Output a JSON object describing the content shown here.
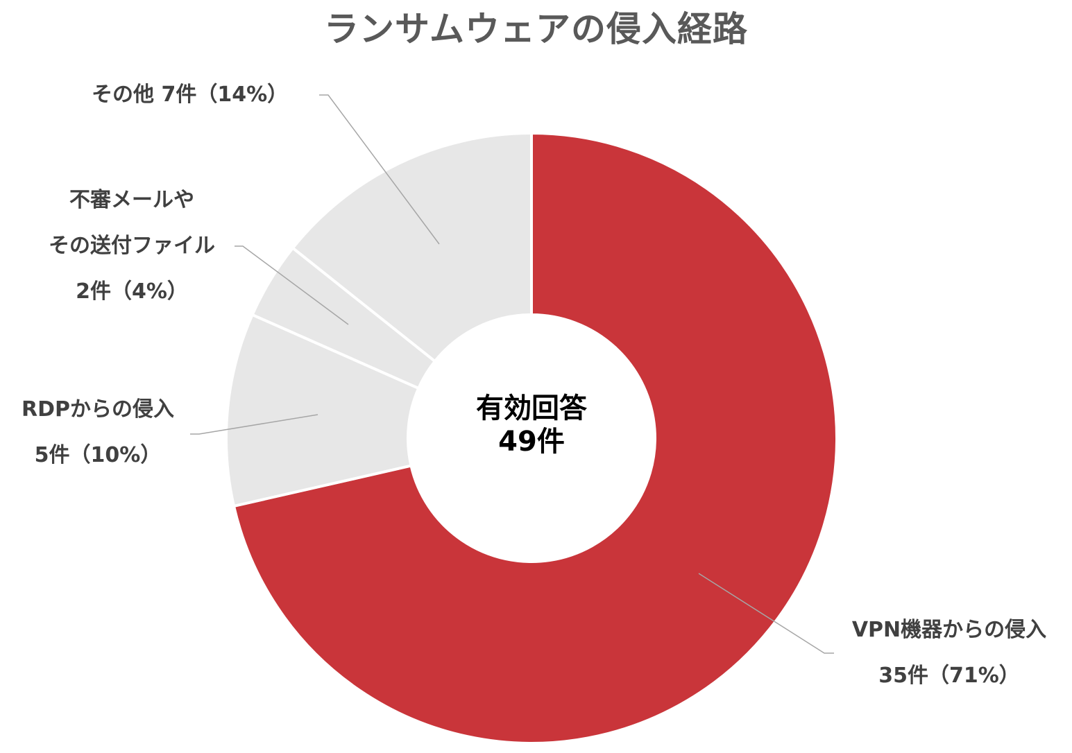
{
  "chart_data": {
    "type": "pie",
    "variant": "donut",
    "title": "ランサムウェアの侵入経路",
    "center_label": {
      "line1": "有効回答",
      "line2": "49件"
    },
    "total": 49,
    "categories": [
      "VPN機器からの侵入",
      "RDPからの侵入",
      "不審メールやその送付ファイル",
      "その他"
    ],
    "values": [
      35,
      5,
      2,
      7
    ],
    "percentages": [
      71,
      10,
      4,
      14
    ],
    "colors": [
      "#C9353A",
      "#E7E7E7",
      "#E7E7E7",
      "#E7E7E7"
    ],
    "labels": [
      {
        "name": "VPN機器からの侵入",
        "value_text": "35件（71%）"
      },
      {
        "name": "RDPからの侵入",
        "value_text": "5件（10%）"
      },
      {
        "name_line1": "不審メールや",
        "name_line2": "その送付ファイル",
        "value_text": "2件（4%）"
      },
      {
        "name": "その他",
        "value_text": "7件（14%）"
      }
    ],
    "legend": "none (data labels with leader lines)"
  },
  "labels": {
    "vpn": {
      "name": "VPN機器からの侵入",
      "value": "35件（71%）"
    },
    "rdp": {
      "name": "RDPからの侵入",
      "value": "5件（10%）"
    },
    "mail": {
      "line1": "不審メールや",
      "line2": "その送付ファイル",
      "value": "2件（4%）"
    },
    "other": {
      "full": "その他 7件（14%）"
    }
  },
  "colors": {
    "accent": "#C9353A",
    "muted": "#E7E7E7",
    "title": "#595959",
    "label": "#404040",
    "leader": "#A6A6A6"
  }
}
